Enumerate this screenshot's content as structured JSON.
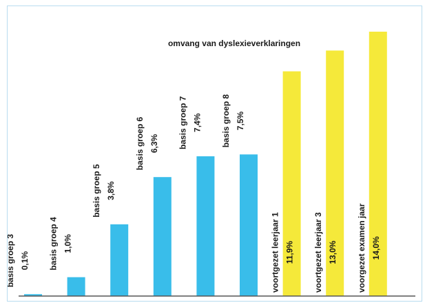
{
  "chart_data": {
    "type": "bar",
    "title": "omvang van dyslexieverklaringen",
    "categories": [
      {
        "name": "basis groep 3",
        "value_label": "0,1%"
      },
      {
        "name": "basis groep 4",
        "value_label": "1,0%"
      },
      {
        "name": "basis groep 5",
        "value_label": "3,8%"
      },
      {
        "name": "basis groep 6",
        "value_label": "6,3%"
      },
      {
        "name": "basis groep 7",
        "value_label": "7,4%"
      },
      {
        "name": "basis groep 8",
        "value_label": "7,5%"
      },
      {
        "name": "voortgezet  leerjaar 1",
        "value_label": "11,9%"
      },
      {
        "name": "voortgezet leerjaar 3",
        "value_label": "13,0%"
      },
      {
        "name": "voorgezet examen jaar",
        "value_label": "14,0%"
      }
    ],
    "values": [
      0.1,
      1.0,
      3.8,
      6.3,
      7.4,
      7.5,
      11.9,
      13.0,
      14.0
    ],
    "colors": [
      "#39bdea",
      "#39bdea",
      "#39bdea",
      "#39bdea",
      "#39bdea",
      "#39bdea",
      "#f5e93a",
      "#f5e93a",
      "#f5e93a"
    ],
    "axis_color": "#555555",
    "xlabel": "",
    "ylabel": "",
    "ylim": [
      0,
      14.0
    ],
    "grid": false,
    "legend": "none"
  }
}
